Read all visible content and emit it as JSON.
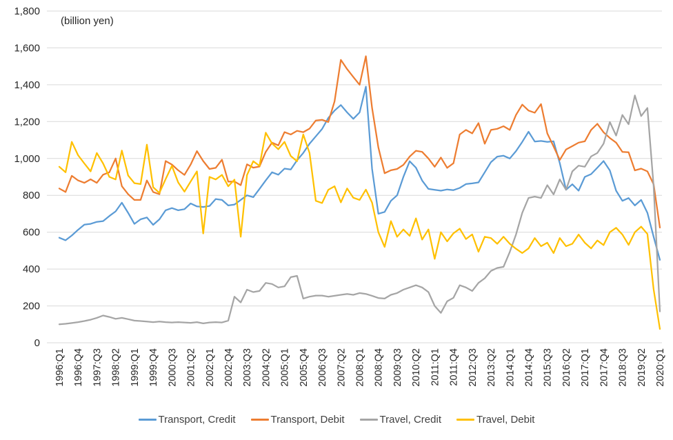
{
  "chart_data": {
    "type": "line",
    "unit_label": "(billion yen)",
    "ylim": [
      0,
      1800
    ],
    "ytick_step": 200,
    "y_tick_labels": [
      "0",
      "200",
      "400",
      "600",
      "800",
      "1,000",
      "1,200",
      "1,400",
      "1,600",
      "1,800"
    ],
    "grid": "horizontal-only",
    "legend_position": "bottom-center",
    "n_points": 97,
    "x_tick_every": 3,
    "x_tick_labels": [
      "1996:Q1",
      "1996:Q4",
      "1997:Q3",
      "1998:Q2",
      "1999:Q1",
      "1999:Q4",
      "2000:Q3",
      "2001:Q2",
      "2002:Q1",
      "2002:Q4",
      "2003:Q3",
      "2004:Q2",
      "2005:Q1",
      "2005:Q4",
      "2006:Q3",
      "2007:Q2",
      "2008:Q1",
      "2008:Q4",
      "2009:Q3",
      "2010:Q2",
      "2011:Q1",
      "2011:Q4",
      "2012:Q3",
      "2013:Q2",
      "2014:Q1",
      "2014:Q4",
      "2015:Q3",
      "2016:Q2",
      "2017:Q1",
      "2017:Q4",
      "2018:Q3",
      "2019:Q2",
      "2020:Q1"
    ],
    "series": [
      {
        "name": "Transport, Credit",
        "color": "#5B9BD5",
        "values": [
          570,
          556,
          582,
          613,
          641,
          645,
          656,
          660,
          688,
          713,
          760,
          705,
          645,
          670,
          680,
          640,
          670,
          719,
          731,
          719,
          725,
          756,
          740,
          737,
          742,
          780,
          775,
          745,
          750,
          775,
          800,
          790,
          835,
          881,
          925,
          912,
          945,
          940,
          990,
          1030,
          1080,
          1120,
          1160,
          1220,
          1260,
          1290,
          1250,
          1215,
          1250,
          1390,
          943,
          700,
          710,
          770,
          800,
          900,
          985,
          950,
          880,
          835,
          830,
          825,
          832,
          828,
          840,
          861,
          865,
          870,
          925,
          980,
          1010,
          1015,
          1000,
          1040,
          1090,
          1145,
          1092,
          1095,
          1090,
          1093,
          975,
          830,
          860,
          825,
          900,
          915,
          950,
          986,
          935,
          825,
          770,
          785,
          745,
          775,
          705,
          575,
          450
        ]
      },
      {
        "name": "Transport, Debit",
        "color": "#ED7D31",
        "values": [
          837,
          818,
          906,
          881,
          868,
          887,
          868,
          912,
          925,
          1000,
          850,
          806,
          775,
          775,
          881,
          818,
          806,
          986,
          967,
          936,
          911,
          967,
          1040,
          986,
          943,
          949,
          993,
          874,
          875,
          855,
          968,
          950,
          956,
          1036,
          1086,
          1071,
          1143,
          1130,
          1150,
          1143,
          1162,
          1206,
          1210,
          1198,
          1310,
          1535,
          1485,
          1442,
          1400,
          1555,
          1274,
          1060,
          920,
          936,
          943,
          965,
          1010,
          1042,
          1036,
          1000,
          955,
          1005,
          949,
          974,
          1130,
          1155,
          1136,
          1192,
          1080,
          1155,
          1161,
          1175,
          1155,
          1236,
          1292,
          1260,
          1248,
          1295,
          1136,
          1065,
          992,
          1049,
          1067,
          1086,
          1093,
          1155,
          1188,
          1142,
          1111,
          1086,
          1036,
          1034,
          935,
          945,
          930,
          860,
          625
        ]
      },
      {
        "name": "Travel, Credit",
        "color": "#A5A5A5",
        "values": [
          100,
          103,
          107,
          112,
          118,
          125,
          135,
          148,
          140,
          130,
          135,
          128,
          120,
          118,
          115,
          112,
          115,
          112,
          110,
          112,
          110,
          108,
          112,
          105,
          110,
          112,
          110,
          120,
          250,
          219,
          288,
          275,
          281,
          325,
          319,
          300,
          306,
          356,
          363,
          240,
          250,
          256,
          256,
          250,
          255,
          260,
          265,
          260,
          270,
          265,
          255,
          243,
          240,
          260,
          270,
          288,
          300,
          312,
          300,
          275,
          200,
          162,
          225,
          244,
          312,
          300,
          281,
          325,
          350,
          390,
          406,
          412,
          493,
          587,
          705,
          786,
          793,
          786,
          855,
          805,
          886,
          830,
          930,
          961,
          955,
          1011,
          1030,
          1080,
          1198,
          1124,
          1236,
          1186,
          1342,
          1230,
          1274,
          850,
          170
        ]
      },
      {
        "name": "Travel, Debit",
        "color": "#FFC000",
        "values": [
          955,
          925,
          1090,
          1018,
          973,
          930,
          1030,
          973,
          900,
          886,
          1043,
          908,
          866,
          861,
          1075,
          844,
          813,
          888,
          960,
          870,
          820,
          875,
          930,
          593,
          900,
          886,
          911,
          849,
          885,
          575,
          910,
          985,
          960,
          1140,
          1081,
          1050,
          1090,
          1013,
          985,
          1130,
          1030,
          770,
          758,
          830,
          849,
          762,
          837,
          787,
          775,
          831,
          760,
          600,
          520,
          660,
          575,
          615,
          580,
          675,
          560,
          615,
          455,
          600,
          550,
          594,
          619,
          563,
          588,
          494,
          575,
          568,
          537,
          575,
          537,
          510,
          487,
          512,
          568,
          524,
          543,
          487,
          568,
          524,
          537,
          587,
          543,
          512,
          555,
          530,
          600,
          624,
          587,
          531,
          600,
          630,
          590,
          290,
          75
        ]
      }
    ]
  }
}
